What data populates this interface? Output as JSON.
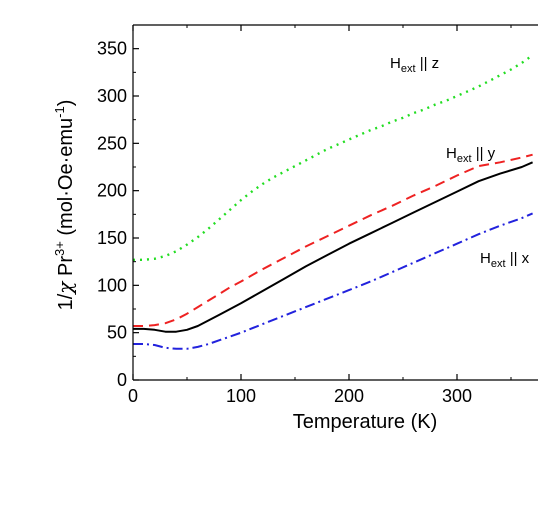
{
  "chart_data": {
    "type": "line",
    "title": "",
    "xlabel": "Temperature (K)",
    "ylabel": {
      "parts": [
        "1/",
        "χ",
        " Pr",
        "3+",
        " (mol·Oe·emu",
        "-1",
        ")"
      ]
    },
    "xlim": [
      0,
      375
    ],
    "ylim": [
      0,
      375
    ],
    "xticks": [
      0,
      100,
      200,
      300
    ],
    "yticks": [
      0,
      50,
      100,
      150,
      200,
      250,
      300,
      350
    ],
    "grid": false,
    "legend": "none",
    "series": [
      {
        "key": "z",
        "label": {
          "main": "H",
          "sub": "ext",
          "rest": " || z"
        },
        "color": "#22dd22",
        "dash": "2,5",
        "x": [
          0,
          10,
          20,
          30,
          40,
          50,
          60,
          70,
          80,
          90,
          100,
          110,
          120,
          130,
          140,
          150,
          160,
          170,
          180,
          190,
          200,
          210,
          220,
          230,
          240,
          250,
          260,
          270,
          280,
          290,
          300,
          310,
          320,
          330,
          340,
          350,
          360,
          370
        ],
        "y": [
          127,
          127,
          128,
          131,
          136,
          143,
          151,
          160,
          170,
          180,
          190,
          199,
          207,
          214,
          220,
          226,
          232,
          238,
          244,
          249,
          254,
          259,
          264,
          268,
          273,
          277,
          282,
          286,
          291,
          295,
          300,
          305,
          310,
          316,
          322,
          328,
          335,
          343
        ]
      },
      {
        "key": "y",
        "label": {
          "main": "H",
          "sub": "ext",
          "rest": " || y"
        },
        "color": "#ee2222",
        "dash": "10,6",
        "x": [
          0,
          10,
          20,
          30,
          40,
          50,
          60,
          70,
          80,
          90,
          100,
          120,
          140,
          160,
          180,
          200,
          220,
          240,
          260,
          280,
          300,
          320,
          340,
          360,
          370
        ],
        "y": [
          57,
          57,
          58,
          60,
          64,
          70,
          77,
          84,
          91,
          98,
          104,
          117,
          129,
          141,
          152,
          163,
          174,
          184,
          195,
          205,
          216,
          226,
          230,
          235,
          238
        ]
      },
      {
        "key": "avg",
        "label": null,
        "color": "#000000",
        "dash": "",
        "x": [
          0,
          10,
          20,
          30,
          40,
          50,
          60,
          70,
          80,
          90,
          100,
          120,
          140,
          160,
          180,
          200,
          220,
          240,
          260,
          280,
          300,
          320,
          340,
          360,
          370
        ],
        "y": [
          54,
          54,
          53,
          51,
          51,
          53,
          57,
          63,
          69,
          75,
          81,
          94,
          107,
          120,
          132,
          144,
          155,
          166,
          177,
          188,
          199,
          210,
          218,
          225,
          230
        ]
      },
      {
        "key": "x",
        "label": {
          "main": "H",
          "sub": "ext",
          "rest": " || x"
        },
        "color": "#2222dd",
        "dash": "10,4,2,4",
        "x": [
          0,
          10,
          20,
          30,
          40,
          50,
          60,
          70,
          80,
          90,
          100,
          120,
          140,
          160,
          180,
          200,
          220,
          240,
          260,
          280,
          300,
          320,
          340,
          360,
          370
        ],
        "y": [
          38,
          38,
          37,
          34,
          33,
          33,
          35,
          38,
          42,
          46,
          50,
          59,
          68,
          77,
          86,
          95,
          104,
          114,
          124,
          134,
          144,
          154,
          163,
          171,
          176
        ]
      }
    ]
  }
}
